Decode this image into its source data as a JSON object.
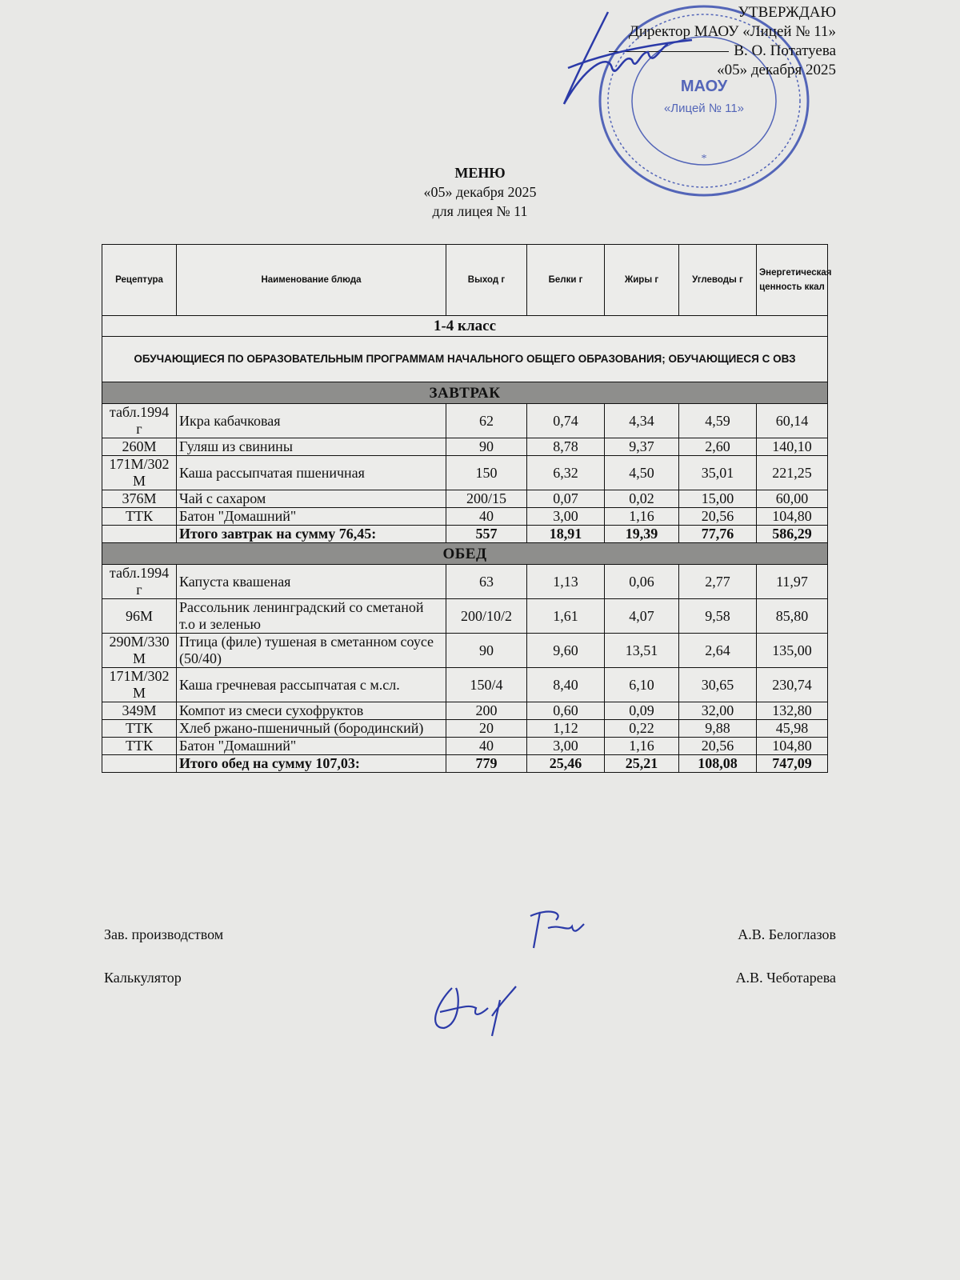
{
  "approval": {
    "heading": "УТВЕРЖДАЮ",
    "position": "Директор МАОУ «Лицей № 11»",
    "name": "В. О. Потатуева",
    "date": "«05» декабря  2025"
  },
  "stamp": {
    "text": "«Лицей № 11»",
    "color": "#3a4fb0"
  },
  "title": {
    "heading": "МЕНЮ",
    "date": "«05» декабря  2025",
    "school": "для лицея № 11"
  },
  "table": {
    "headers": [
      "Рецептура",
      "Наименование блюда",
      "Выход г",
      "Белки г",
      "Жиры г",
      "Углеводы г",
      "Энергетическая ценность ккал"
    ],
    "class_label": "1-4 класс",
    "category": "ОБУЧАЮЩИЕСЯ ПО ОБРАЗОВАТЕЛЬНЫМ ПРОГРАММАМ НАЧАЛЬНОГО ОБЩЕГО ОБРАЗОВАНИЯ; ОБУЧАЮЩИЕСЯ С ОВЗ",
    "sections": [
      {
        "title": "ЗАВТРАК",
        "rows": [
          [
            "табл.1994 г",
            "Икра кабачковая",
            "62",
            "0,74",
            "4,34",
            "4,59",
            "60,14"
          ],
          [
            "260М",
            "Гуляш из свинины",
            "90",
            "8,78",
            "9,37",
            "2,60",
            "140,10"
          ],
          [
            "171М/302 М",
            "Каша рассыпчатая пшеничная",
            "150",
            "6,32",
            "4,50",
            "35,01",
            "221,25"
          ],
          [
            "376М",
            "Чай с сахаром",
            "200/15",
            "0,07",
            "0,02",
            "15,00",
            "60,00"
          ],
          [
            "ТТК",
            "Батон \"Домашний\"",
            "40",
            "3,00",
            "1,16",
            "20,56",
            "104,80"
          ]
        ],
        "total": [
          "",
          "Итого завтрак на сумму 76,45:",
          "557",
          "18,91",
          "19,39",
          "77,76",
          "586,29"
        ]
      },
      {
        "title": "ОБЕД",
        "rows": [
          [
            "табл.1994 г",
            "Капуста квашеная",
            "63",
            "1,13",
            "0,06",
            "2,77",
            "11,97"
          ],
          [
            "96М",
            "Рассольник ленинградский со сметаной т.о и зеленью",
            "200/10/2",
            "1,61",
            "4,07",
            "9,58",
            "85,80"
          ],
          [
            "290М/330 М",
            "Птица (филе) тушеная в сметанном соусе (50/40)",
            "90",
            "9,60",
            "13,51",
            "2,64",
            "135,00"
          ],
          [
            "171М/302 М",
            "Каша гречневая рассыпчатая с м.сл.",
            "150/4",
            "8,40",
            "6,10",
            "30,65",
            "230,74"
          ],
          [
            "349М",
            "Компот из смеси сухофруктов",
            "200",
            "0,60",
            "0,09",
            "32,00",
            "132,80"
          ],
          [
            "ТТК",
            "Хлеб ржано-пшеничный (бородинский)",
            "20",
            "1,12",
            "0,22",
            "9,88",
            "45,98"
          ],
          [
            "ТТК",
            "Батон \"Домашний\"",
            "40",
            "3,00",
            "1,16",
            "20,56",
            "104,80"
          ]
        ],
        "total": [
          "",
          "Итого обед на сумму 107,03:",
          "779",
          "25,46",
          "25,21",
          "108,08",
          "747,09"
        ]
      }
    ]
  },
  "signatures": [
    {
      "role": "Зав. производством",
      "name": "А.В. Белоглазов"
    },
    {
      "role": "Калькулятор",
      "name": "А.В. Чеботарева"
    }
  ],
  "ink_color": "#2b3aa8"
}
